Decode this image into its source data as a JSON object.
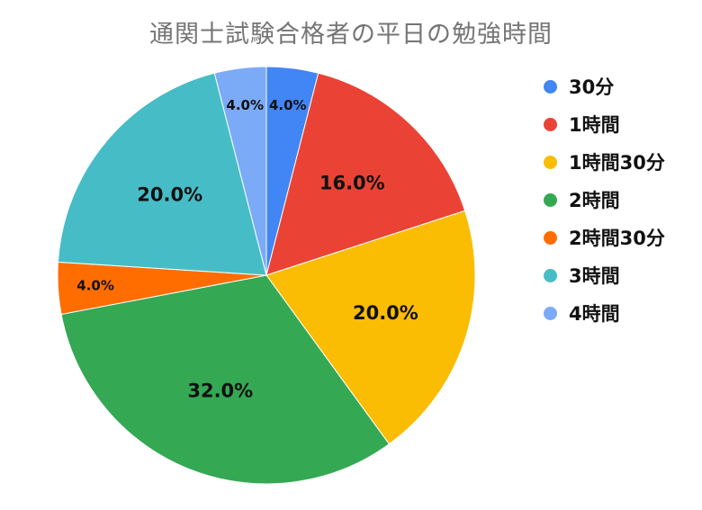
{
  "chart_data": {
    "type": "pie",
    "title": "通関士試験合格者の平日の勉強時間",
    "categories": [
      "30分",
      "1時間",
      "1時間30分",
      "2時間",
      "2時間30分",
      "3時間",
      "4時間"
    ],
    "values": [
      4.0,
      16.0,
      20.0,
      32.0,
      4.0,
      20.0,
      4.0
    ],
    "value_labels": [
      "4.0%",
      "16.0%",
      "20.0%",
      "32.0%",
      "4.0%",
      "20.0%",
      "4.0%"
    ],
    "colors": [
      "#4285f4",
      "#ea4335",
      "#fbbc04",
      "#34a853",
      "#ff6d01",
      "#46bdc6",
      "#7baaf7"
    ],
    "legend": "right"
  }
}
